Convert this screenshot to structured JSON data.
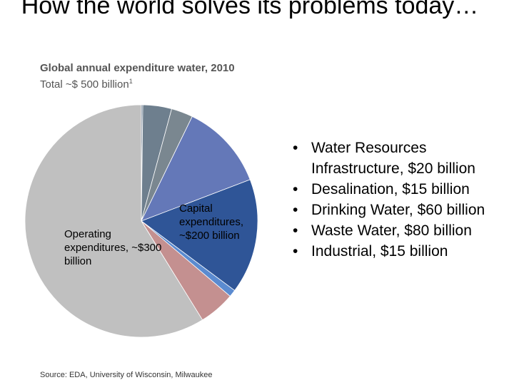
{
  "slide": {
    "title": "How the world solves its problems today…",
    "subtitle_line": "Global annual expenditure water, 2010",
    "subtitle_total": "Total ~$ 500 billion",
    "subtitle_footnote": "1",
    "source": "Source: EDA, University of Wisconsin, Milwaukee"
  },
  "bullets": [
    "Water Resources Infrastructure, $20 billion",
    "Desalination, $15 billion",
    "Drinking Water, $60 billion",
    "Waste Water, $80 billion",
    "Industrial, $15 billion"
  ],
  "chart_data": {
    "type": "pie",
    "title": "",
    "unit": "$ billion",
    "start_angle_deg": -90,
    "direction": "clockwise",
    "slices": [
      {
        "label": "",
        "value": 1,
        "color": "#5a6f86"
      },
      {
        "label": "",
        "value": 20,
        "color": "#6e7f8e"
      },
      {
        "label": "",
        "value": 15,
        "color": "#7a8790"
      },
      {
        "label": "",
        "value": 60,
        "color": "#6478b8"
      },
      {
        "label": "",
        "value": 80,
        "color": "#2f5597"
      },
      {
        "label": "",
        "value": 5,
        "color": "#5b8bd0"
      },
      {
        "label": "",
        "value": 25,
        "color": "#c49090"
      },
      {
        "label": "",
        "value": 294,
        "color": "#c0c0c0"
      }
    ],
    "group_labels": {
      "operating": "Operating expenditures, ~$300 billion",
      "capital": "Capital expenditures, ~$200 billion"
    }
  }
}
